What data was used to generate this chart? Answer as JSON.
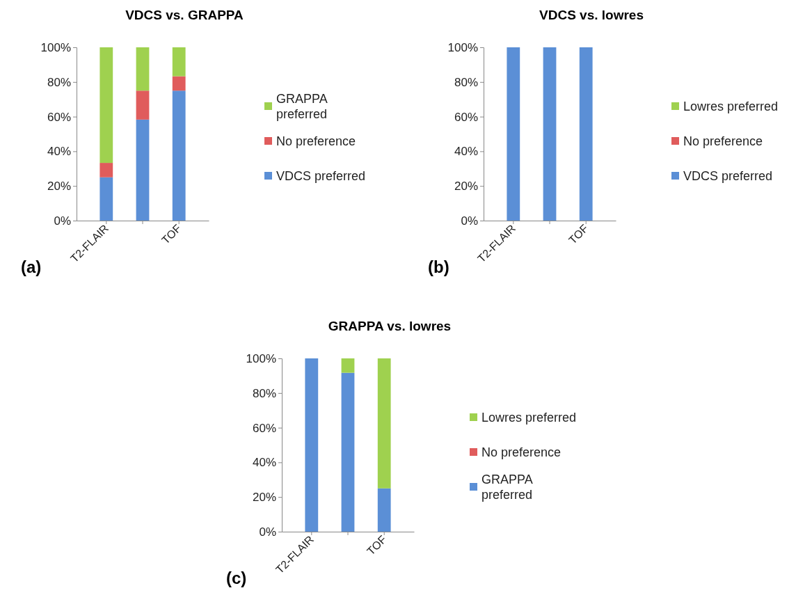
{
  "chart_data": [
    {
      "type": "bar",
      "title": "VDCS vs. GRAPPA",
      "stacked": true,
      "categories": [
        "T2-FLAIR",
        null,
        "TOF"
      ],
      "series": [
        {
          "name": "VDCS preferred",
          "color": "#5b8fd6",
          "values": [
            25,
            58.3,
            75
          ]
        },
        {
          "name": "No preference",
          "color": "#e05c5c",
          "values": [
            8.3,
            16.7,
            8.3
          ]
        },
        {
          "name": "GRAPPA preferred",
          "color": "#9fd14f",
          "values": [
            66.7,
            25,
            16.7
          ]
        }
      ],
      "ylim": [
        0,
        100
      ],
      "yticks": [
        {
          "value": 0,
          "label": "0%"
        },
        {
          "value": 20,
          "label": "20%"
        },
        {
          "value": 40,
          "label": "40%"
        },
        {
          "value": 60,
          "label": "60%"
        },
        {
          "value": 80,
          "label": "80%"
        },
        {
          "value": 100,
          "label": "100%"
        }
      ],
      "legend": "right",
      "annotations": [
        "(a)"
      ]
    },
    {
      "type": "bar",
      "title": "VDCS vs. lowres",
      "stacked": true,
      "categories": [
        "T2-FLAIR",
        null,
        "TOF"
      ],
      "series": [
        {
          "name": "VDCS preferred",
          "color": "#5b8fd6",
          "values": [
            100,
            100,
            100
          ]
        },
        {
          "name": "No preference",
          "color": "#e05c5c",
          "values": [
            0,
            0,
            0
          ]
        },
        {
          "name": "Lowres preferred",
          "color": "#9fd14f",
          "values": [
            0,
            0,
            0
          ]
        }
      ],
      "ylim": [
        0,
        100
      ],
      "yticks": [
        {
          "value": 0,
          "label": "0%"
        },
        {
          "value": 20,
          "label": "20%"
        },
        {
          "value": 40,
          "label": "40%"
        },
        {
          "value": 60,
          "label": "60%"
        },
        {
          "value": 80,
          "label": "80%"
        },
        {
          "value": 100,
          "label": "100%"
        }
      ],
      "legend": "right",
      "annotations": [
        "(b)"
      ]
    },
    {
      "type": "bar",
      "title": "GRAPPA vs. lowres",
      "stacked": true,
      "categories": [
        "T2-FLAIR",
        null,
        "TOF"
      ],
      "series": [
        {
          "name": "GRAPPA preferred",
          "color": "#5b8fd6",
          "values": [
            100,
            91.7,
            25
          ]
        },
        {
          "name": "No preference",
          "color": "#e05c5c",
          "values": [
            0,
            0,
            0
          ]
        },
        {
          "name": "Lowres preferred",
          "color": "#9fd14f",
          "values": [
            0,
            8.3,
            75
          ]
        }
      ],
      "ylim": [
        0,
        100
      ],
      "yticks": [
        {
          "value": 0,
          "label": "0%"
        },
        {
          "value": 20,
          "label": "20%"
        },
        {
          "value": 40,
          "label": "40%"
        },
        {
          "value": 60,
          "label": "60%"
        },
        {
          "value": 80,
          "label": "80%"
        },
        {
          "value": 100,
          "label": "100%"
        }
      ],
      "legend": "right",
      "annotations": [
        "(c)"
      ]
    }
  ]
}
